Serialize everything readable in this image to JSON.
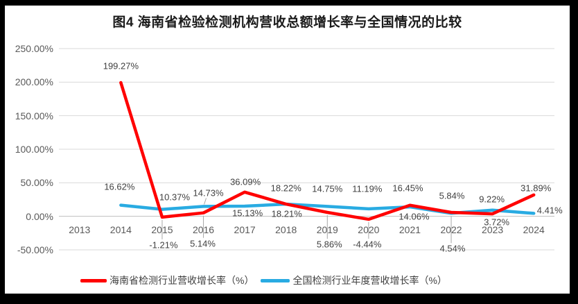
{
  "title": "图4 海南省检验检测机构营收总额增长率与全国情况的比较",
  "chart_data": {
    "type": "line",
    "title": "图4 海南省检验检测机构营收总额增长率与全国情况的比较",
    "categories": [
      "2013",
      "2014",
      "2015",
      "2016",
      "2017",
      "2018",
      "2019",
      "2020",
      "2021",
      "2022",
      "2023",
      "2024"
    ],
    "ylim": [
      -50,
      250
    ],
    "grid": true,
    "legend_position": "bottom",
    "yticks": [
      {
        "label": "250.00%",
        "value": 250
      },
      {
        "label": "200.00%",
        "value": 200
      },
      {
        "label": "150.00%",
        "value": 150
      },
      {
        "label": "100.00%",
        "value": 100
      },
      {
        "label": "50.00%",
        "value": 50
      },
      {
        "label": "0.00%",
        "value": 0
      },
      {
        "label": "-50.00%",
        "value": -50
      }
    ],
    "series": [
      {
        "name": "海南省检测行业营收增长率（%）",
        "key": "hainan",
        "color": "#FF0000",
        "start_category_index": 1,
        "values": [
          199.27,
          -1.21,
          5.14,
          36.09,
          18.22,
          5.86,
          -4.44,
          16.45,
          5.84,
          3.72,
          31.89
        ],
        "point_labels": [
          {
            "text": "199.27%",
            "dx": 0,
            "dy": -24
          },
          {
            "text": "-1.21%",
            "dx": 2,
            "dy": 40,
            "leader": "v"
          },
          {
            "text": "5.14%",
            "dx": -1,
            "dy": 44,
            "leader": "v"
          },
          {
            "text": "36.09%",
            "dx": 1,
            "dy": -15
          },
          {
            "text": "18.22%",
            "dx": 0,
            "dy": -23
          },
          {
            "text": "5.86%",
            "dx": 3,
            "dy": 46,
            "leader": "v"
          },
          {
            "text": "-4.44%",
            "dx": -2,
            "dy": 36,
            "leader": "v"
          },
          {
            "text": "16.45%",
            "dx": -3,
            "dy": -25
          },
          {
            "text": "5.84%",
            "dx": 1,
            "dy": -24
          },
          {
            "text": "3.72%",
            "dx": 6,
            "dy": 12
          },
          {
            "text": "31.89%",
            "dx": 3,
            "dy": -10
          }
        ]
      },
      {
        "name": "全国检测行业年度营收增长率（%）",
        "key": "national",
        "color": "#29ABE2",
        "start_category_index": 1,
        "values": [
          16.62,
          10.37,
          14.73,
          15.13,
          18.21,
          14.75,
          11.19,
          14.06,
          4.54,
          9.22,
          4.41
        ],
        "point_labels": [
          {
            "text": "16.62%",
            "dx": -2,
            "dy": -27
          },
          {
            "text": "10.37%",
            "dx": 18,
            "dy": -18
          },
          {
            "text": "14.73%",
            "dx": 7,
            "dy": -19,
            "leader": "d"
          },
          {
            "text": "15.13%",
            "dx": 4,
            "dy": 10
          },
          {
            "text": "18.21%",
            "dx": 1,
            "dy": 14
          },
          {
            "text": "14.75%",
            "dx": 0,
            "dy": -25
          },
          {
            "text": "11.19%",
            "dx": -2,
            "dy": -29
          },
          {
            "text": "14.06%",
            "dx": 6,
            "dy": 14
          },
          {
            "text": "4.54%",
            "dx": 2,
            "dy": 51,
            "leader": "v"
          },
          {
            "text": "9.22%",
            "dx": -1,
            "dy": -16
          },
          {
            "text": "4.41%",
            "dx": 23,
            "dy": -4
          }
        ]
      }
    ]
  },
  "legend": {
    "items": [
      {
        "label": "海南省检测行业营收增长率（%）",
        "color": "#FF0000"
      },
      {
        "label": "全国检测行业年度营收增长率（%）",
        "color": "#29ABE2"
      }
    ]
  },
  "colors": {
    "hainan_line": "#FF0000",
    "national_line": "#29ABE2",
    "gridline": "#D9D9D9",
    "axis_line": "#BFBFBF",
    "tick_text": "#595959",
    "data_label_text": "#404040",
    "leader_line": "#A6A6A6",
    "frame": "#000000",
    "panel": "#FFFFFF"
  }
}
